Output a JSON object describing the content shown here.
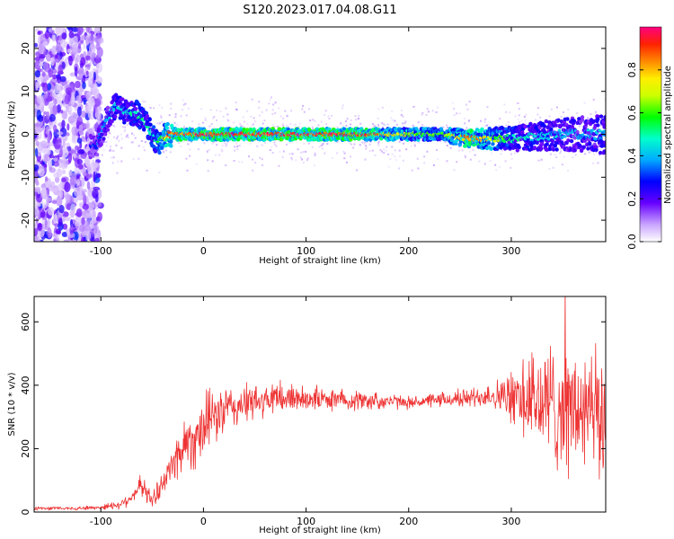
{
  "title": "S120.2023.017.04.08.G11",
  "chart_data": [
    {
      "type": "heatmap",
      "title": "S120.2023.017.04.08.G11",
      "xlabel": "Height of straight line (km)",
      "ylabel": "Frequency (Hz)",
      "xlim": [
        -165,
        392
      ],
      "ylim": [
        -25,
        25
      ],
      "xticks": [
        -100,
        0,
        100,
        200,
        300
      ],
      "yticks": [
        -20,
        -10,
        0,
        10,
        20
      ],
      "colorbar": {
        "label": "Normalized spectral amplitude",
        "range": [
          0,
          1
        ],
        "ticks": [
          "0.0",
          "0.2",
          "0.4",
          "0.6",
          "0.8"
        ],
        "ticks_numeric": [
          0.0,
          0.2,
          0.4,
          0.6,
          0.8
        ],
        "colormap": [
          "#ffffff",
          "#6600ff",
          "#0000ff",
          "#00ffff",
          "#00ff00",
          "#ffff00",
          "#ff8800",
          "#ff0000",
          "#ff0080"
        ]
      },
      "ridge": {
        "description_x": [
          -105,
          -95,
          -85,
          -75,
          -65,
          -55,
          -45,
          -35,
          -25,
          -10,
          50,
          150,
          200,
          230,
          260,
          300,
          350,
          390
        ],
        "frequency_y": [
          -3,
          3,
          7,
          5,
          5,
          2,
          -2,
          0,
          0,
          0,
          0,
          0,
          0,
          0,
          -1,
          -1,
          0,
          0
        ],
        "amplitude": [
          0.3,
          0.4,
          0.45,
          0.45,
          0.5,
          0.5,
          0.55,
          0.8,
          0.9,
          0.95,
          0.95,
          0.95,
          0.7,
          0.6,
          0.9,
          0.5,
          0.4,
          0.4
        ]
      },
      "grid": false
    },
    {
      "type": "line",
      "xlabel": "Height of straight line (km)",
      "ylabel": "SNR (10 * v/v)",
      "xlim": [
        -165,
        392
      ],
      "ylim": [
        0,
        680
      ],
      "xticks": [
        -100,
        0,
        100,
        200,
        300
      ],
      "yticks": [
        0,
        200,
        400,
        600
      ],
      "color": "#ee3333",
      "series": [
        {
          "x": [
            -165,
            -140,
            -120,
            -100,
            -80,
            -70,
            -60,
            -50,
            -40,
            -30,
            -20,
            -10,
            0,
            10,
            20,
            30,
            40,
            60,
            80,
            100,
            120,
            140,
            160,
            180,
            200,
            220,
            240,
            260,
            280,
            300,
            320,
            340,
            360,
            380,
            392
          ],
          "y": [
            12,
            12,
            12,
            15,
            25,
            50,
            85,
            35,
            90,
            150,
            210,
            230,
            270,
            300,
            320,
            330,
            340,
            350,
            360,
            360,
            355,
            355,
            350,
            350,
            345,
            350,
            355,
            360,
            370,
            360,
            350,
            340,
            320,
            300,
            290
          ],
          "spread": [
            6,
            6,
            6,
            8,
            15,
            25,
            35,
            25,
            40,
            60,
            90,
            100,
            100,
            90,
            80,
            70,
            60,
            55,
            50,
            40,
            35,
            35,
            30,
            25,
            20,
            20,
            25,
            30,
            40,
            80,
            170,
            200,
            210,
            210,
            210
          ]
        }
      ],
      "grid": false
    }
  ]
}
